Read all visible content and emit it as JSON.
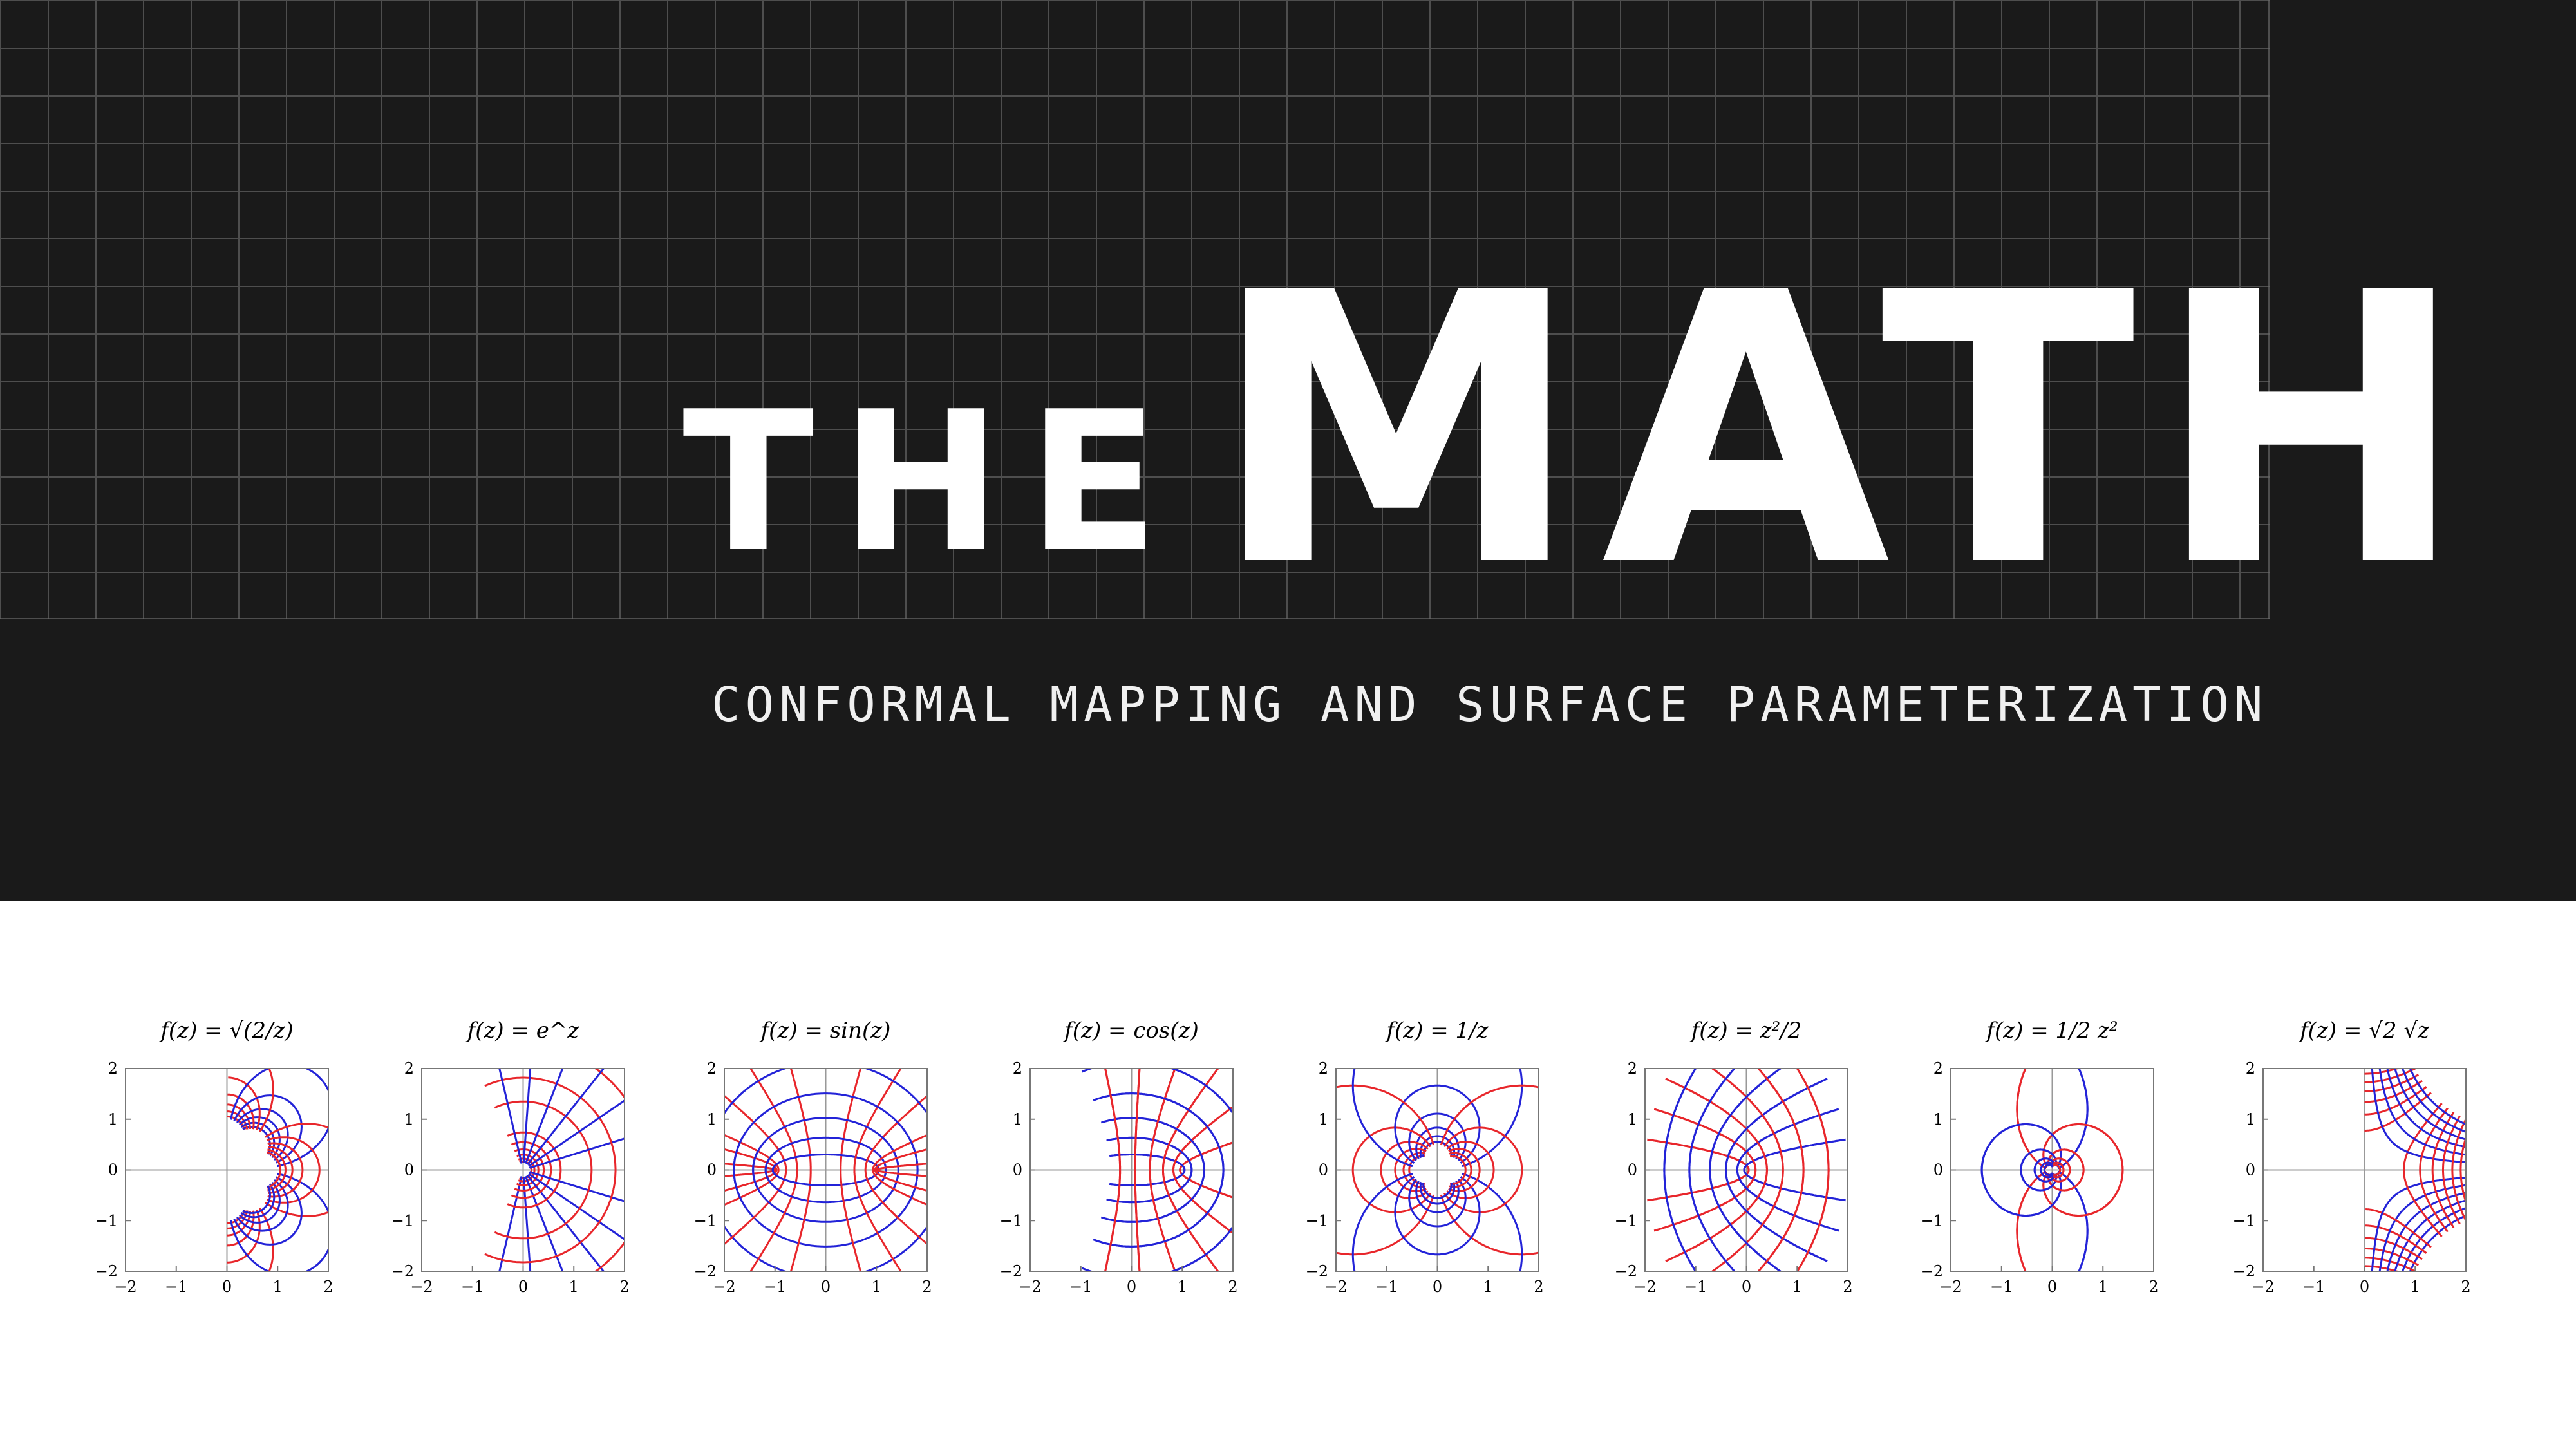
{
  "hero": {
    "title_small": "THE",
    "title_large": "MATH",
    "subtitle": "CONFORMAL MAPPING AND SURFACE PARAMETERIZATION",
    "background_color": "#1a1a1a",
    "grid_color": "#6a6a6a"
  },
  "plots": [
    {
      "title": "f(z) = √(2/z)",
      "kind": "sqrt2overz",
      "xticks": [
        "−2",
        "−1",
        "0",
        "1",
        "2"
      ],
      "yticks": [
        "2",
        "1",
        "0",
        "−1",
        "−2"
      ]
    },
    {
      "title": "f(z) = e^z",
      "kind": "exp",
      "xticks": [
        "−2",
        "−1",
        "0",
        "1",
        "2"
      ],
      "yticks": [
        "2",
        "1",
        "0",
        "−1",
        "−2"
      ]
    },
    {
      "title": "f(z) = sin(z)",
      "kind": "sin",
      "xticks": [
        "−2",
        "−1",
        "0",
        "1",
        "2"
      ],
      "yticks": [
        "2",
        "1",
        "0",
        "−1",
        "−2"
      ]
    },
    {
      "title": "f(z) = cos(z)",
      "kind": "cos",
      "xticks": [
        "−2",
        "−1",
        "0",
        "1",
        "2"
      ],
      "yticks": [
        "2",
        "1",
        "0",
        "−1",
        "−2"
      ]
    },
    {
      "title": "f(z) = 1/z",
      "kind": "inv",
      "xticks": [
        "−2",
        "−1",
        "0",
        "1",
        "2"
      ],
      "yticks": [
        "2",
        "1",
        "0",
        "−1",
        "−2"
      ]
    },
    {
      "title": "f(z) = z²/2",
      "kind": "sq",
      "xticks": [
        "−2",
        "−1",
        "0",
        "1",
        "2"
      ],
      "yticks": [
        "2",
        "1",
        "0",
        "−1",
        "−2"
      ]
    },
    {
      "title": "f(z) = 1/2 z²",
      "kind": "invsq",
      "xticks": [
        "−2",
        "−1",
        "0",
        "1",
        "2"
      ],
      "yticks": [
        "2",
        "1",
        "0",
        "−1",
        "−2"
      ]
    },
    {
      "title": "f(z) = √2 √z",
      "kind": "sqrt",
      "xticks": [
        "−2",
        "−1",
        "0",
        "1",
        "2"
      ],
      "yticks": [
        "2",
        "1",
        "0",
        "−1",
        "−2"
      ]
    }
  ],
  "colors": {
    "red_curve": "#e8262b",
    "blue_curve": "#2323d8"
  }
}
